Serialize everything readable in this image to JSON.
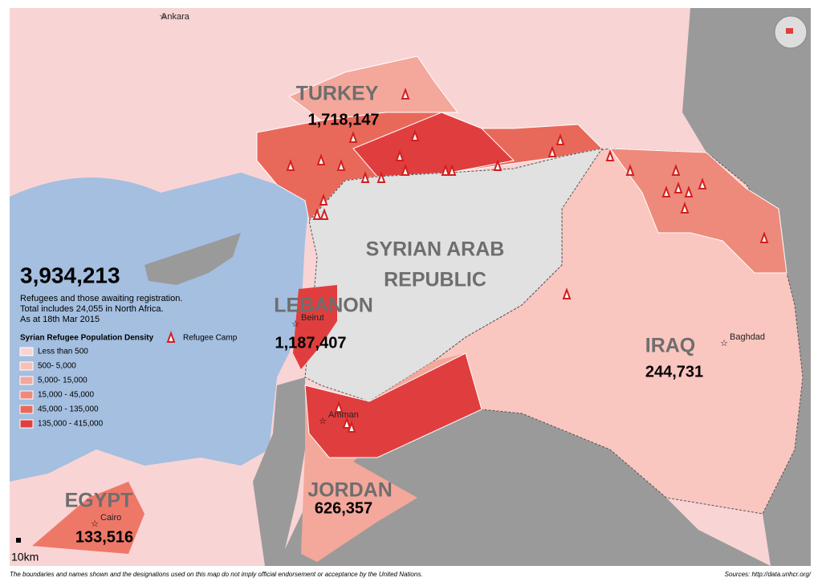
{
  "map": {
    "city_ankara": "Ankara",
    "countries": [
      {
        "name": "TURKEY",
        "count": "1,718,147",
        "city": null
      },
      {
        "name": "LEBANON",
        "count": "1,187,407",
        "city": "Beirut"
      },
      {
        "name": "IRAQ",
        "count": "244,731",
        "city": "Baghdad"
      },
      {
        "name": "JORDAN",
        "count": "626,357",
        "city": "Amman"
      },
      {
        "name": "EGYPT",
        "count": "133,516",
        "city": "Cairo"
      }
    ],
    "syria_lines": [
      "SYRIAN ARAB",
      "REPUBLIC"
    ],
    "summary": {
      "total": "3,934,213",
      "lines": [
        "Refugees and those awaiting registration.",
        "Total includes 24,055 in North Africa.",
        "As at 18th Mar 2015"
      ]
    },
    "legend": {
      "title": "Syrian Refugee Population Density",
      "camp": "Refugee Camp",
      "items": [
        {
          "label": "Less than 500",
          "color": "#f9d4d4"
        },
        {
          "label": "500- 5,000",
          "color": "#f7c0b8"
        },
        {
          "label": "5,000- 15,000",
          "color": "#f4a79b"
        },
        {
          "label": "15,000 - 45,000",
          "color": "#ee8a7b"
        },
        {
          "label": "45,000 - 135,000",
          "color": "#e8695a"
        },
        {
          "label": "135,000 - 415,000",
          "color": "#e03e3e"
        }
      ]
    },
    "scale": "10km",
    "disclaimer": "The boundaries and names shown and the designations used on this map do not imply official endorsement or acceptance by the United Nations.",
    "sources": "Sources: http://data.unhcr.org/"
  }
}
